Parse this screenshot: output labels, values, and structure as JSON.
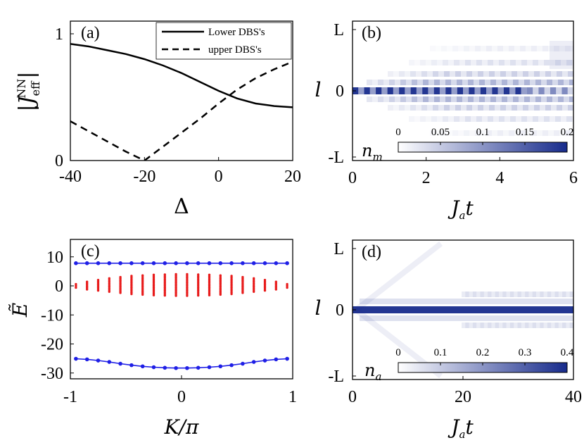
{
  "colors": {
    "blue": "#1f1fe6",
    "red": "#e81b1b",
    "heat": "#172b8c"
  },
  "chart_data": [
    {
      "panel": "(a)",
      "type": "line",
      "xlabel": "Δ",
      "ylabel": "|J_eff^NN|",
      "xlim": [
        -40,
        20
      ],
      "ylim": [
        0,
        1.1
      ],
      "xticks": [
        "-40",
        "-20",
        "0",
        "20"
      ],
      "yticks": [
        "0",
        "1"
      ],
      "legend_position": "top-right",
      "series": [
        {
          "name": "Lower DBS's",
          "style": "solid",
          "x": [
            -40,
            -35,
            -30,
            -25,
            -20,
            -15,
            -10,
            -5,
            0,
            5,
            10,
            15,
            20
          ],
          "y": [
            0.92,
            0.9,
            0.87,
            0.84,
            0.8,
            0.75,
            0.69,
            0.62,
            0.55,
            0.49,
            0.45,
            0.43,
            0.42
          ]
        },
        {
          "name": "upper DBS's",
          "style": "dashed",
          "x": [
            -40,
            -35,
            -30,
            -25,
            -20,
            -15,
            -10,
            -5,
            0,
            5,
            10,
            15,
            20
          ],
          "y": [
            0.31,
            0.23,
            0.15,
            0.07,
            0.0,
            0.11,
            0.22,
            0.33,
            0.45,
            0.56,
            0.65,
            0.72,
            0.78
          ]
        }
      ]
    },
    {
      "panel": "(b)",
      "type": "heatmap",
      "xlabel": "J_a t",
      "ylabel": "l",
      "xlim": [
        0,
        6
      ],
      "xticks": [
        "0",
        "2",
        "4",
        "6"
      ],
      "yticks": [
        "L",
        "0",
        "-L"
      ],
      "colorbar": {
        "label": "n_m",
        "range": [
          0,
          0.2
        ],
        "ticks": [
          "0",
          "0.05",
          "0.1",
          "0.15",
          "0.2"
        ]
      }
    },
    {
      "panel": "(c)",
      "type": "scatter",
      "xlabel": "K/π",
      "ylabel": "Ẽ",
      "xlim": [
        -1,
        1
      ],
      "ylim": [
        -32,
        16
      ],
      "xticks": [
        "-1",
        "0",
        "1"
      ],
      "yticks": [
        "10",
        "0",
        "-10",
        "-20",
        "-30"
      ],
      "series": [
        {
          "color": "blue",
          "style": "line-markers",
          "x": [
            -0.95,
            -0.85,
            -0.75,
            -0.65,
            -0.55,
            -0.45,
            -0.35,
            -0.25,
            -0.15,
            -0.05,
            0.05,
            0.15,
            0.25,
            0.35,
            0.45,
            0.55,
            0.65,
            0.75,
            0.85,
            0.95
          ],
          "y": [
            7.8,
            7.8,
            7.8,
            7.8,
            7.8,
            7.8,
            7.8,
            7.8,
            7.8,
            7.8,
            7.8,
            7.8,
            7.8,
            7.8,
            7.8,
            7.8,
            7.8,
            7.8,
            7.8,
            7.8
          ]
        },
        {
          "color": "blue",
          "style": "line-markers",
          "x": [
            -0.95,
            -0.85,
            -0.75,
            -0.65,
            -0.55,
            -0.45,
            -0.35,
            -0.25,
            -0.15,
            -0.05,
            0.05,
            0.15,
            0.25,
            0.35,
            0.45,
            0.55,
            0.65,
            0.75,
            0.85,
            0.95
          ],
          "y": [
            -25.1,
            -25.3,
            -25.7,
            -26.2,
            -26.8,
            -27.3,
            -27.7,
            -28.0,
            -28.2,
            -28.3,
            -28.3,
            -28.2,
            -28.0,
            -27.7,
            -27.3,
            -26.8,
            -26.2,
            -25.7,
            -25.3,
            -25.1
          ]
        },
        {
          "color": "red",
          "style": "band-markers",
          "x": [
            -0.95,
            -0.85,
            -0.75,
            -0.65,
            -0.55,
            -0.45,
            -0.35,
            -0.25,
            -0.15,
            -0.05,
            0.05,
            0.15,
            0.25,
            0.35,
            0.45,
            0.55,
            0.65,
            0.75,
            0.85,
            0.95
          ],
          "ymin": [
            -0.6,
            -1.2,
            -1.6,
            -2.0,
            -2.4,
            -2.8,
            -3.0,
            -3.2,
            -3.3,
            -3.4,
            -3.4,
            -3.3,
            -3.2,
            -3.0,
            -2.8,
            -2.4,
            -2.0,
            -1.6,
            -1.2,
            -0.6
          ],
          "ymax": [
            0.6,
            1.4,
            2.0,
            2.6,
            3.0,
            3.4,
            3.6,
            3.8,
            3.9,
            4.0,
            4.0,
            3.9,
            3.8,
            3.6,
            3.4,
            3.0,
            2.6,
            2.0,
            1.4,
            0.6
          ]
        }
      ]
    },
    {
      "panel": "(d)",
      "type": "heatmap",
      "xlabel": "J_a t",
      "ylabel": "l",
      "xlim": [
        0,
        40
      ],
      "xticks": [
        "0",
        "20",
        "40"
      ],
      "yticks": [
        "L",
        "0",
        "-L"
      ],
      "colorbar": {
        "label": "n_a",
        "range": [
          0,
          0.4
        ],
        "ticks": [
          "0",
          "0.1",
          "0.2",
          "0.3",
          "0.4"
        ]
      }
    }
  ]
}
